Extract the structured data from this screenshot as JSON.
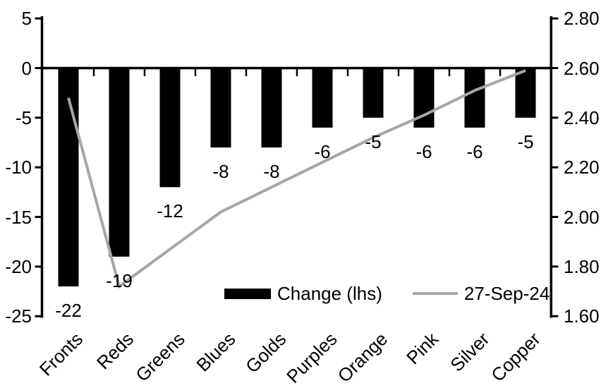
{
  "chart_data": {
    "type": "bar",
    "subtype": "bar-line-combo",
    "title": "",
    "xlabel": "",
    "ylabel_left": "",
    "ylabel_right": "",
    "grid": false,
    "background": "#ffffff",
    "categories": [
      "Fronts",
      "Reds",
      "Greens",
      "Blues",
      "Golds",
      "Purples",
      "Orange",
      "Pink",
      "Silver",
      "Copper"
    ],
    "series": [
      {
        "name": "Change (lhs)",
        "type": "bar",
        "axis": "left",
        "color": "#000000",
        "values": [
          -22,
          -19,
          -12,
          -8,
          -8,
          -6,
          -5,
          -6,
          -6,
          -5
        ],
        "labels": [
          "-22",
          "-19",
          "-12",
          "-8",
          "-8",
          "-6",
          "-5",
          "-6",
          "-6",
          "-5"
        ]
      },
      {
        "name": "27-Sep-24",
        "type": "line",
        "axis": "right",
        "color": "#a6a6a6",
        "values": [
          2.48,
          1.72,
          1.87,
          2.02,
          2.12,
          2.22,
          2.32,
          2.41,
          2.51,
          2.59
        ]
      }
    ],
    "left_axis": {
      "min": -25,
      "max": 5,
      "tick_labels": [
        "5",
        "0",
        "-5",
        "-10",
        "-15",
        "-20",
        "-25"
      ],
      "tick_values": [
        5,
        0,
        -5,
        -10,
        -15,
        -20,
        -25
      ]
    },
    "right_axis": {
      "min": 1.6,
      "max": 2.8,
      "tick_labels": [
        "2.80",
        "2.60",
        "2.40",
        "2.20",
        "2.00",
        "1.80",
        "1.60"
      ],
      "tick_values": [
        2.8,
        2.6,
        2.4,
        2.2,
        2.0,
        1.8,
        1.6
      ]
    },
    "legend": {
      "position": "bottom-center-inside",
      "entries": [
        "Change (lhs)",
        "27-Sep-24"
      ]
    },
    "colors": {
      "bar": "#000000",
      "line": "#a6a6a6",
      "axis": "#000000",
      "text": "#000000"
    }
  }
}
